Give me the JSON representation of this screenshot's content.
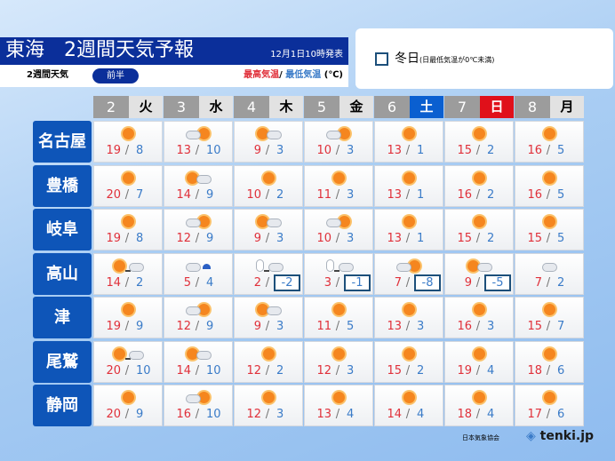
{
  "header": {
    "title": "東海　2週間天気予報",
    "issued": "12月1日10時発表",
    "sub_label": "2週間天気",
    "half": "前半",
    "hi_label": "最高気温",
    "sep": "/",
    "lo_label": "最低気温",
    "unit": "(℃)"
  },
  "legend": {
    "label": "冬日",
    "note": "(日最低気温が0℃未満)"
  },
  "days": [
    {
      "d": "2",
      "w": "火"
    },
    {
      "d": "3",
      "w": "水"
    },
    {
      "d": "4",
      "w": "木"
    },
    {
      "d": "5",
      "w": "金"
    },
    {
      "d": "6",
      "w": "土",
      "color": "#0a5fd0"
    },
    {
      "d": "7",
      "w": "日",
      "color": "#e0101a"
    },
    {
      "d": "8",
      "w": "月"
    }
  ],
  "rows": [
    {
      "city": "名古屋",
      "cells": [
        [
          "sunny",
          19,
          8
        ],
        [
          "cloudy-sunny",
          13,
          10
        ],
        [
          "sunny-cloudy",
          9,
          3
        ],
        [
          "cloudy-sunny",
          10,
          3
        ],
        [
          "sunny",
          13,
          1
        ],
        [
          "sunny",
          15,
          2
        ],
        [
          "sunny",
          16,
          5
        ]
      ]
    },
    {
      "city": "豊橋",
      "cells": [
        [
          "sunny",
          20,
          7
        ],
        [
          "sunny-cloudy",
          14,
          9
        ],
        [
          "sunny",
          10,
          2
        ],
        [
          "sunny",
          11,
          3
        ],
        [
          "sunny",
          13,
          1
        ],
        [
          "sunny",
          16,
          2
        ],
        [
          "sunny",
          16,
          5
        ]
      ]
    },
    {
      "city": "岐阜",
      "cells": [
        [
          "sunny",
          19,
          8
        ],
        [
          "cloudy-sunny",
          12,
          9
        ],
        [
          "sunny-cloudy",
          9,
          3
        ],
        [
          "cloudy-sunny",
          10,
          3
        ],
        [
          "sunny",
          13,
          1
        ],
        [
          "sunny",
          15,
          2
        ],
        [
          "sunny",
          15,
          5
        ]
      ]
    },
    {
      "city": "高山",
      "cells": [
        [
          "sunny-then-cloudy",
          14,
          2
        ],
        [
          "cloudy-rain-snow",
          5,
          4
        ],
        [
          "snow-then-cloudy",
          2,
          -2
        ],
        [
          "snow-then-cloudy",
          3,
          -1
        ],
        [
          "cloudy-sunny",
          7,
          -8
        ],
        [
          "sunny-cloudy",
          9,
          -5
        ],
        [
          "cloudy",
          7,
          2
        ]
      ]
    },
    {
      "city": "津",
      "cells": [
        [
          "sunny",
          19,
          9
        ],
        [
          "cloudy-sunny",
          12,
          9
        ],
        [
          "sunny-cloudy",
          9,
          3
        ],
        [
          "sunny",
          11,
          5
        ],
        [
          "sunny",
          13,
          3
        ],
        [
          "sunny",
          16,
          3
        ],
        [
          "sunny",
          15,
          7
        ]
      ]
    },
    {
      "city": "尾鷲",
      "cells": [
        [
          "sunny-then-cloudy",
          20,
          10
        ],
        [
          "sunny-cloudy",
          14,
          10
        ],
        [
          "sunny",
          12,
          2
        ],
        [
          "sunny",
          12,
          3
        ],
        [
          "sunny",
          15,
          2
        ],
        [
          "sunny",
          19,
          4
        ],
        [
          "sunny",
          18,
          6
        ]
      ]
    },
    {
      "city": "静岡",
      "cells": [
        [
          "sunny",
          20,
          9
        ],
        [
          "cloudy-sunny",
          16,
          10
        ],
        [
          "sunny",
          12,
          3
        ],
        [
          "sunny",
          13,
          4
        ],
        [
          "sunny",
          14,
          4
        ],
        [
          "sunny",
          18,
          4
        ],
        [
          "sunny",
          17,
          6
        ]
      ]
    }
  ],
  "colors": {
    "high": "#e0303a",
    "low": "#3a7bc8",
    "title_bg": "#0b2f9a",
    "city_bg": "#0e55b8"
  },
  "footer": {
    "credit": "日本気象協会",
    "logo": "tenki.jp"
  }
}
